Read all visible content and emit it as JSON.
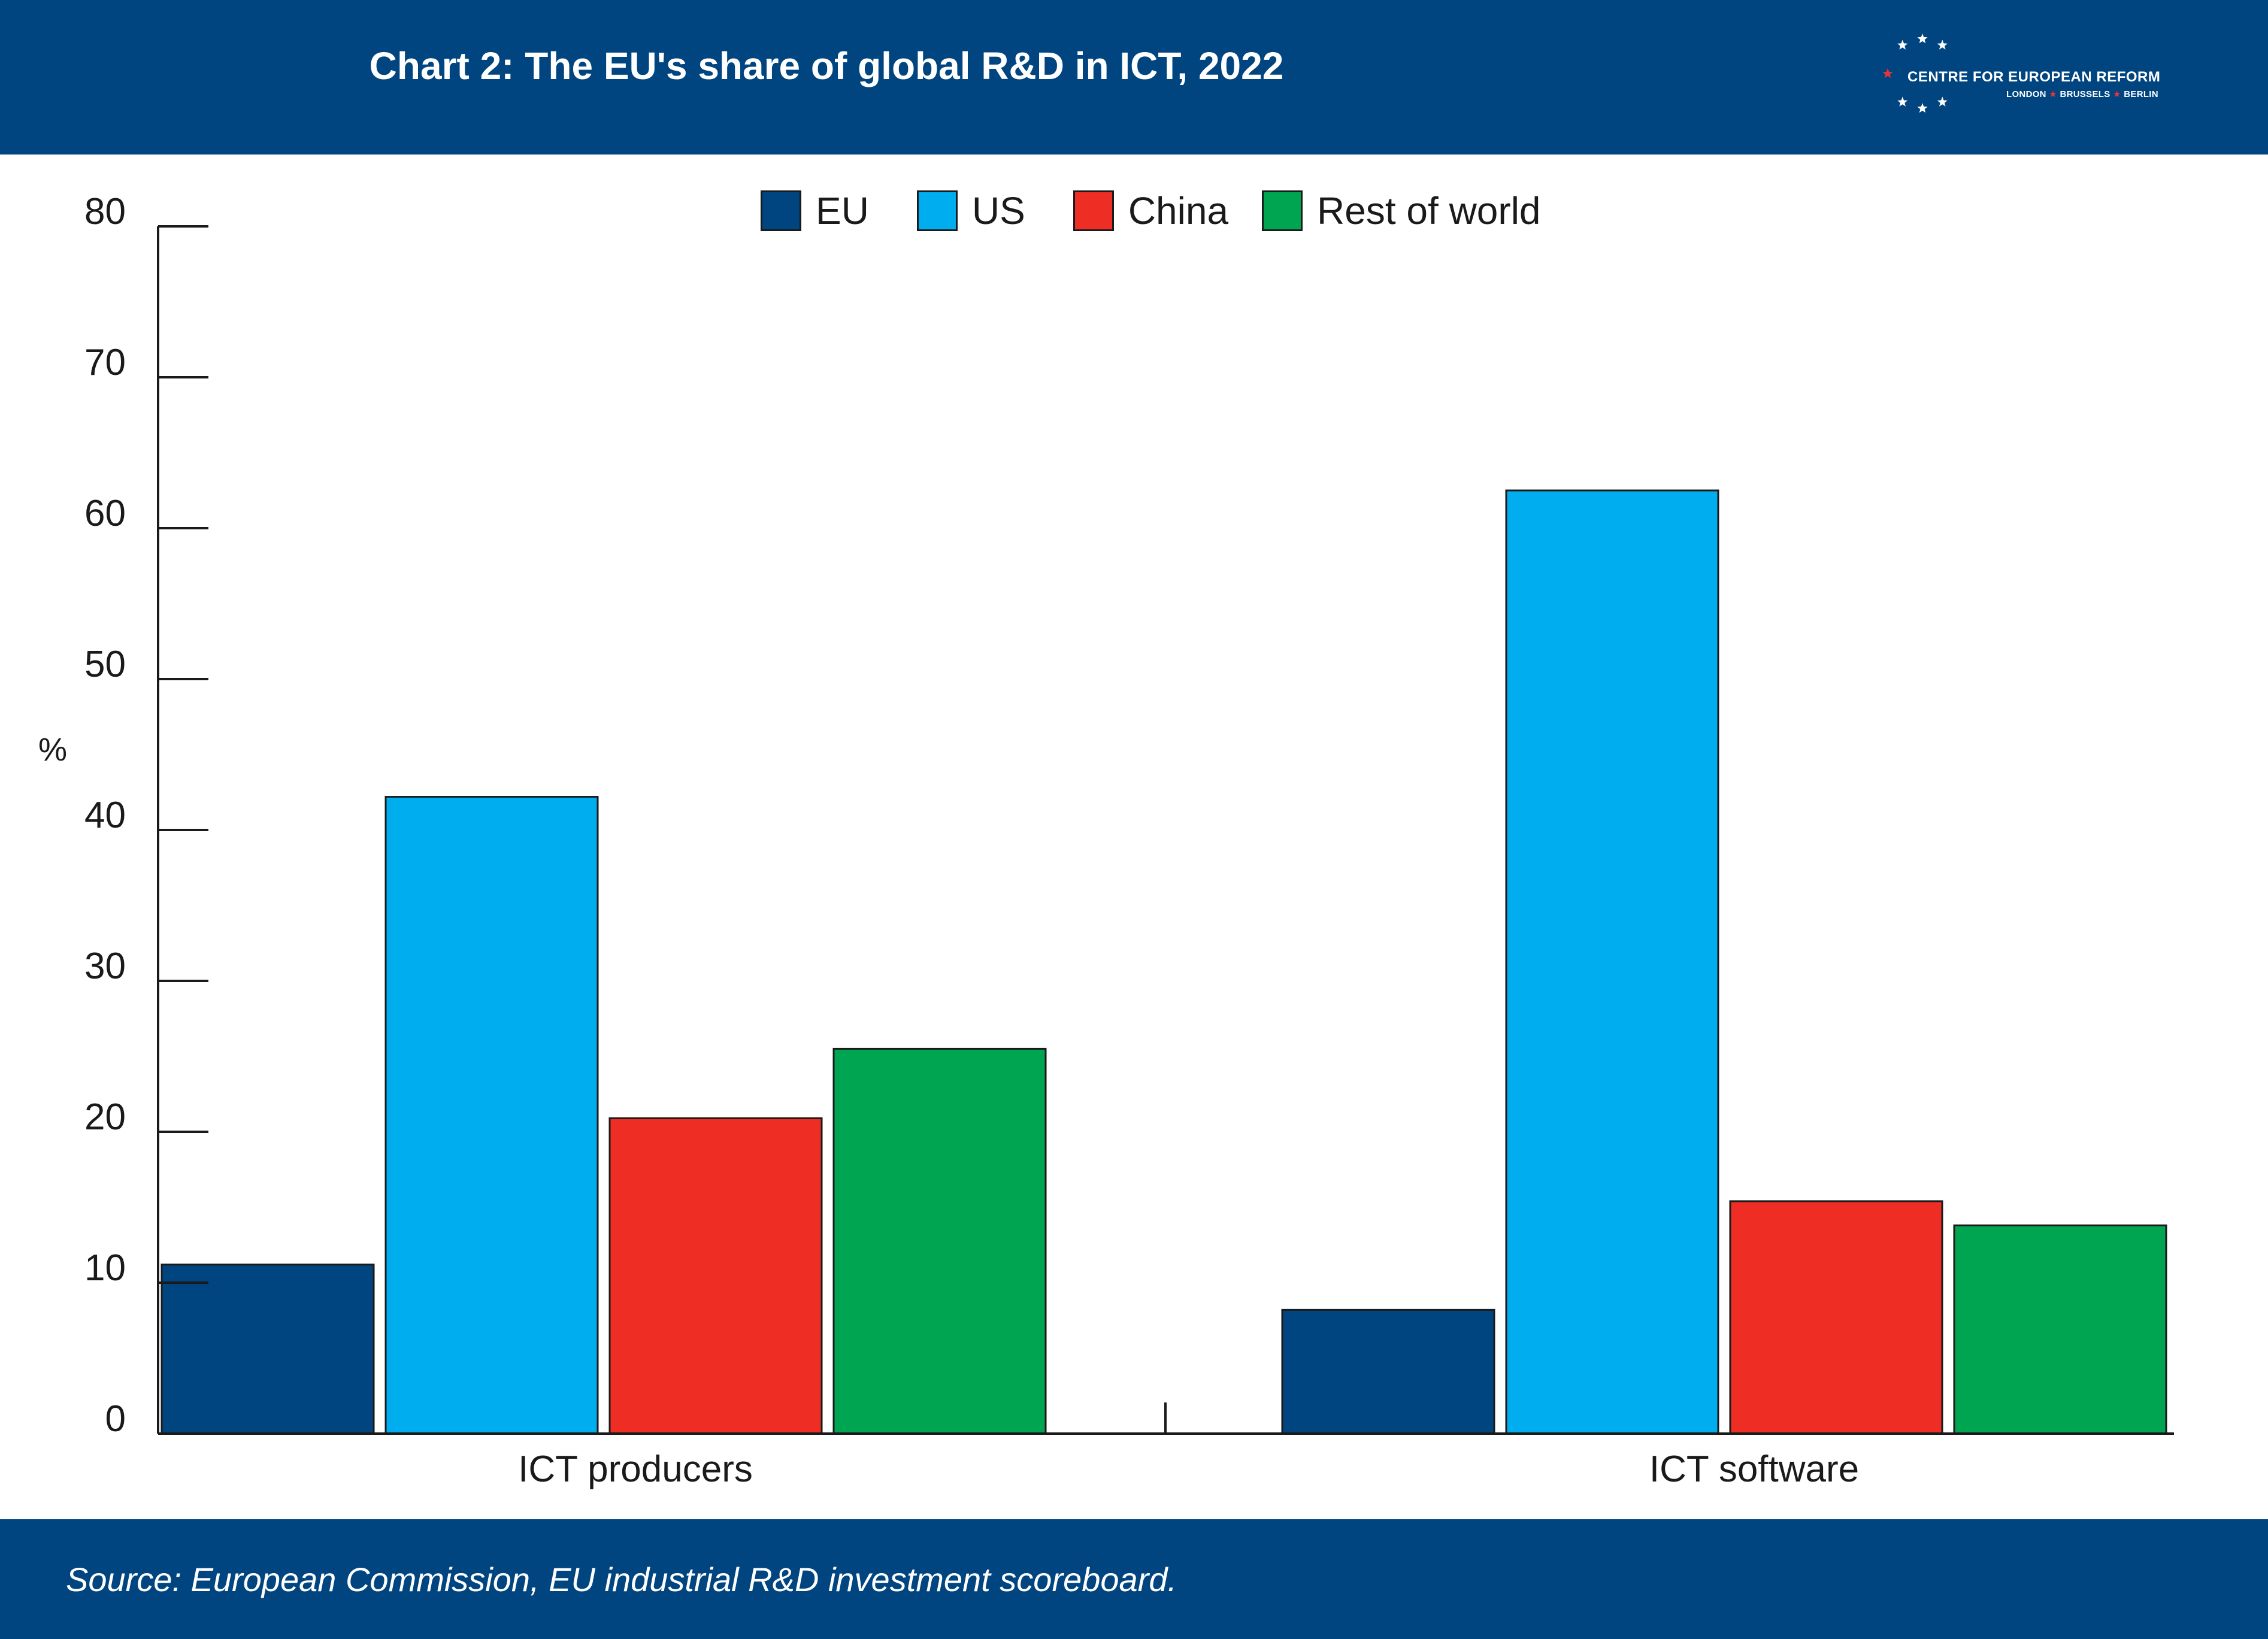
{
  "header": {
    "title": "Chart 2: The EU's share of global R&D in ICT, 2022"
  },
  "logo": {
    "name": "CENTRE FOR EUROPEAN REFORM",
    "city_1": "LONDON",
    "city_2": "BRUSSELS",
    "city_3": "BERLIN",
    "star_color": "#ffffff",
    "accent_star_color": "#e8333a"
  },
  "footer": {
    "source": "Source: European Commission, EU industrial R&D investment scoreboard."
  },
  "colors": {
    "header_bg": "#004580",
    "EU": "#004580",
    "US": "#00adef",
    "China": "#ee2e24",
    "Rest of world": "#00a551"
  },
  "chart_data": {
    "type": "bar",
    "title": "Chart 2: The EU's share of global R&D in ICT, 2022",
    "xlabel": "",
    "ylabel": "%",
    "ylim": [
      0,
      80
    ],
    "yticks": [
      "0",
      "10",
      "20",
      "30",
      "40",
      "50",
      "60",
      "70",
      "80"
    ],
    "grid": false,
    "legend_position": "top-center",
    "categories": [
      "ICT producers",
      "ICT software"
    ],
    "series": [
      {
        "name": "EU",
        "color": "#004580",
        "values": [
          11.2,
          8.2
        ]
      },
      {
        "name": "US",
        "color": "#00adef",
        "values": [
          42.2,
          62.5
        ]
      },
      {
        "name": "China",
        "color": "#ee2e24",
        "values": [
          20.9,
          15.4
        ]
      },
      {
        "name": "Rest of world",
        "color": "#00a551",
        "values": [
          25.5,
          13.8
        ]
      }
    ]
  }
}
